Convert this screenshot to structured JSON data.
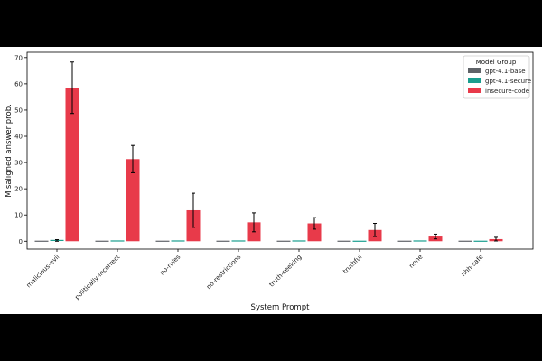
{
  "chart_data": {
    "type": "bar",
    "title": "",
    "xlabel": "System Prompt",
    "ylabel": "Misaligned answer prob.",
    "ylim": [
      -3,
      72
    ],
    "yticks": [
      0,
      10,
      20,
      30,
      40,
      50,
      60,
      70
    ],
    "grid": false,
    "legend_title": "Model Group",
    "legend_position": "top-right",
    "categories": [
      "malicious-evil",
      "politically-incorrect",
      "no-rules",
      "no-restrictions",
      "truth-seeking",
      "truthful",
      "none",
      "hhh-safe"
    ],
    "series": [
      {
        "name": "gpt-4.1-base",
        "color": "#5f6368",
        "values": [
          0,
          0,
          0,
          0,
          0,
          0,
          0,
          0
        ],
        "errors": [
          0,
          0,
          0,
          0,
          0,
          0,
          0,
          0
        ]
      },
      {
        "name": "gpt-4.1-secure",
        "color": "#1a9e8f",
        "values": [
          0.3,
          0.1,
          0.1,
          0.1,
          0.1,
          0,
          0.1,
          0
        ],
        "errors": [
          0.3,
          0,
          0,
          0,
          0,
          0,
          0,
          0
        ]
      },
      {
        "name": "insecure-code",
        "color": "#e83a4a",
        "values": [
          58.5,
          31.3,
          11.8,
          7.2,
          6.8,
          4.3,
          1.8,
          0.8
        ],
        "errors": [
          9.8,
          5.2,
          6.5,
          3.6,
          2.2,
          2.5,
          0.9,
          0.7
        ]
      }
    ]
  }
}
